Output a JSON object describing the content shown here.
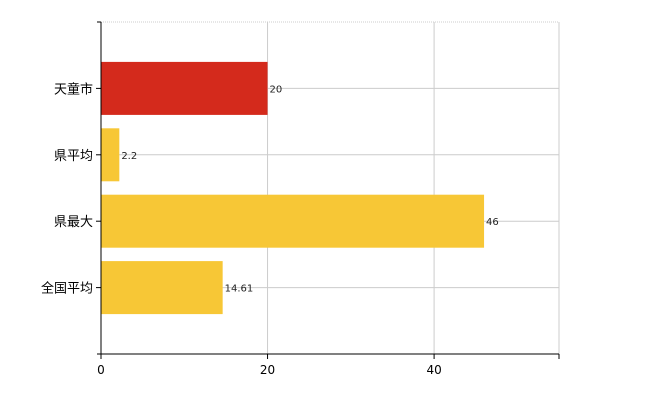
{
  "chart_data": {
    "type": "bar",
    "orientation": "horizontal",
    "title": "",
    "xlabel": "",
    "ylabel": "",
    "categories": [
      "天童市",
      "県平均",
      "県最大",
      "全国平均"
    ],
    "values": [
      20,
      2.2,
      46,
      14.61
    ],
    "value_labels": [
      "20",
      "2.2",
      "46",
      "14.61"
    ],
    "bar_colors": [
      "#d42a1c",
      "#f7c736",
      "#f7c736",
      "#f7c736"
    ],
    "xlim": [
      0,
      55
    ],
    "xticks": [
      0,
      20,
      40
    ],
    "xtick_labels": [
      "0",
      "20",
      "40"
    ],
    "grid": true,
    "legend": "none",
    "colors": {
      "highlight": "#d42a1c",
      "default": "#f7c736",
      "grid": "#cccccc",
      "axis": "#000000"
    }
  }
}
